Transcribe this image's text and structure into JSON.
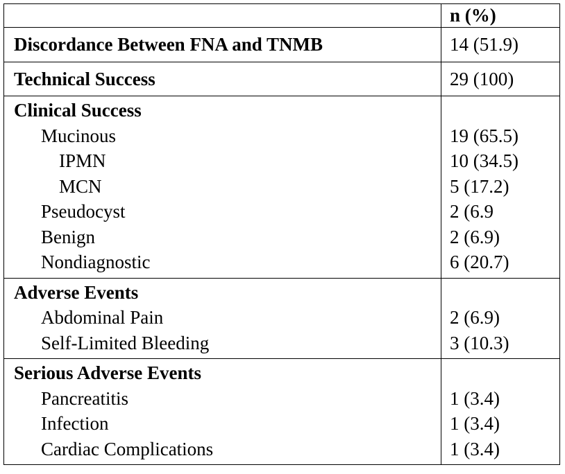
{
  "table": {
    "header": {
      "label": "",
      "value": "n (%)"
    },
    "rows": [
      {
        "type": "single",
        "label": "Discordance Between FNA and TNMB",
        "value": "14 (51.9)"
      },
      {
        "type": "single",
        "label": "Technical Success",
        "value": "29 (100)"
      },
      {
        "type": "group",
        "label": "Clinical Success",
        "items": [
          {
            "label": "Mucinous",
            "value": "19 (65.5)"
          },
          {
            "label": "IPMN",
            "value": "10 (34.5)"
          },
          {
            "label": "MCN",
            "value": "5 (17.2)"
          },
          {
            "label": "Pseudocyst",
            "value": "2 (6.9"
          },
          {
            "label": "Benign",
            "value": "2 (6.9)"
          },
          {
            "label": "Nondiagnostic",
            "value": "6 (20.7)"
          }
        ]
      },
      {
        "type": "group",
        "label": "Adverse Events",
        "items": [
          {
            "label": "Abdominal Pain",
            "value": "2 (6.9)"
          },
          {
            "label": "Self-Limited Bleeding",
            "value": "3 (10.3)"
          }
        ]
      },
      {
        "type": "group",
        "label": "Serious Adverse Events",
        "items": [
          {
            "label": "Pancreatitis",
            "value": "1 (3.4)"
          },
          {
            "label": "Infection",
            "value": "1 (3.4)"
          },
          {
            "label": "Cardiac Complications",
            "value": "1 (3.4)"
          }
        ]
      }
    ]
  }
}
